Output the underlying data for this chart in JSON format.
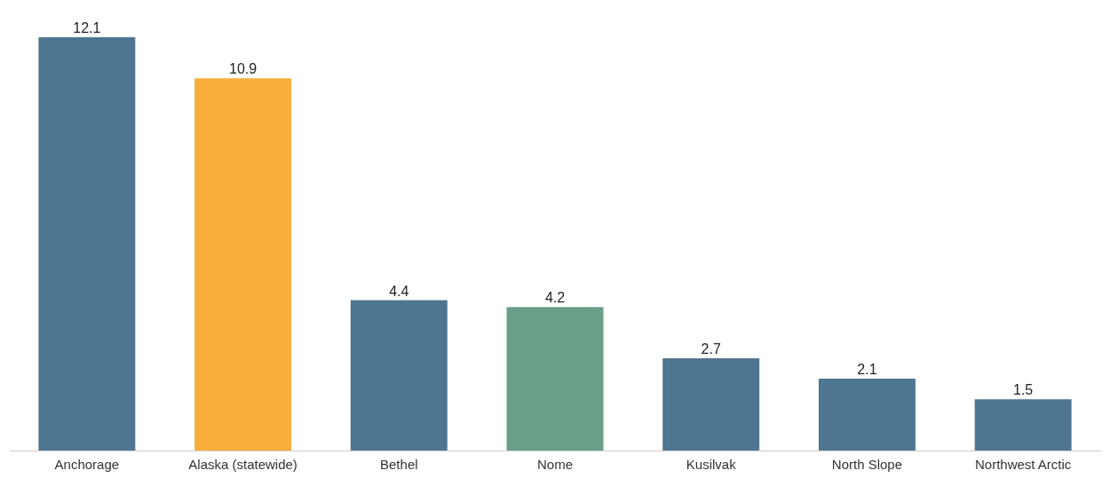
{
  "chart_data": {
    "type": "bar",
    "categories": [
      "Anchorage",
      "Alaska (statewide)",
      "Bethel",
      "Nome",
      "Kusilvak",
      "North Slope",
      "Northwest Arctic"
    ],
    "values": [
      12.1,
      10.9,
      4.4,
      4.2,
      2.7,
      2.1,
      1.5
    ],
    "colors": [
      "#4e7591",
      "#f9ae3d",
      "#4e7591",
      "#6b9e88",
      "#4e7591",
      "#4e7591",
      "#4e7591"
    ],
    "data_labels": true
  }
}
